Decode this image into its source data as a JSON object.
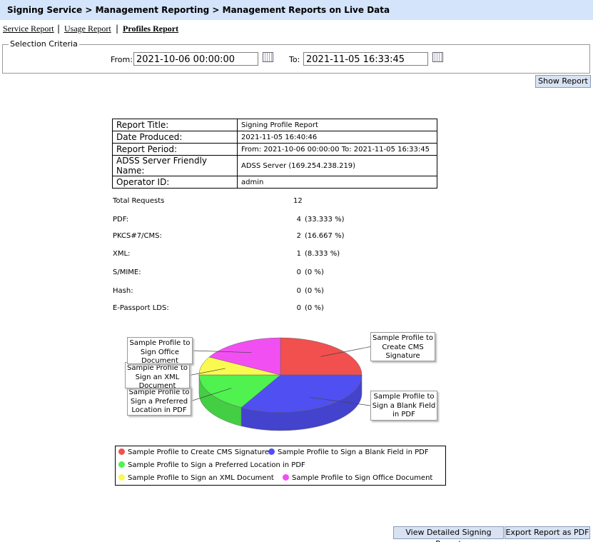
{
  "header": {
    "breadcrumb": "Signing Service > Management Reporting > Management Reports on Live Data"
  },
  "tabs": [
    "Service Report",
    "Usage Report",
    "Profiles Report"
  ],
  "criteria": {
    "legend": "Selection Criteria",
    "from_label": "From:",
    "from": "2021-10-06 00:00:00",
    "to_label": "To:",
    "to": "2021-11-05 16:33:45"
  },
  "buttons": {
    "show_report": "Show Report",
    "detailed": "View Detailed Signing Report",
    "export": "Export Report as PDF"
  },
  "info_table": {
    "rows": [
      [
        "Report Title:",
        "Signing Profile Report"
      ],
      [
        "Date Produced:",
        "2021-11-05 16:40:46"
      ],
      [
        "Report Period:",
        "From: 2021-10-06 00:00:00   To: 2021-11-05 16:33:45"
      ],
      [
        "ADSS Server Friendly Name:",
        "ADSS Server (169.254.238.219)"
      ],
      [
        "Operator ID:",
        "admin"
      ]
    ]
  },
  "stats": {
    "total": {
      "label": "Total Requests",
      "value": "12"
    },
    "rows": [
      [
        "PDF:",
        "4",
        "(33.333 %)"
      ],
      [
        "PKCS#7/CMS:",
        "2",
        "(16.667 %)"
      ],
      [
        "XML:",
        "1",
        "(8.333 %)"
      ],
      [
        "S/MIME:",
        "0",
        "(0 %)"
      ],
      [
        "Hash:",
        "0",
        "(0 %)"
      ],
      [
        "E-Passport LDS:",
        "0",
        "(0 %)"
      ]
    ]
  },
  "pie": {
    "type": "pie",
    "categories": [
      "Sample Profile to Create CMS Signature",
      "Sample Profile to Sign a Blank Field in PDF",
      "Sample Profile to Sign a Preferred Location in PDF",
      "Sample Profile to Sign an XML Document",
      "Sample Profile to Sign Office Document"
    ],
    "values": [
      25,
      33,
      17,
      8,
      17
    ],
    "colors": [
      "#f24f4f",
      "#4f4ff2",
      "#4ff24f",
      "#f9f94f",
      "#f24ff2"
    ]
  }
}
